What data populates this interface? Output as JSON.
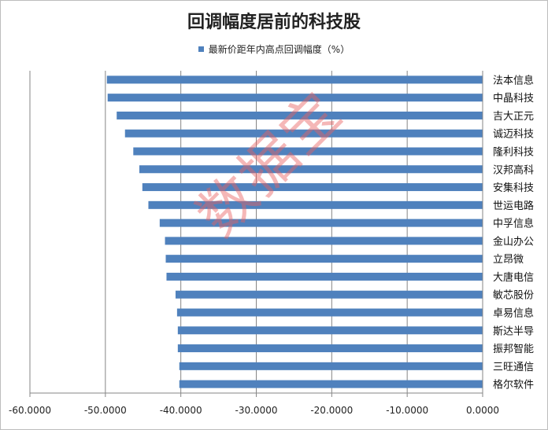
{
  "watermark": "数据宝",
  "colors": {
    "bar": "#4f81bd",
    "grid": "#868686",
    "axis": "#868686"
  },
  "chart_data": {
    "type": "bar",
    "orientation": "horizontal",
    "title": "回调幅度居前的科技股",
    "legend_position": "top",
    "series": [
      {
        "name": "最新价距年内高点回调幅度（%）",
        "values": [
          -49.8,
          -49.7,
          -48.5,
          -47.4,
          -46.3,
          -45.5,
          -45.1,
          -44.3,
          -42.8,
          -42.1,
          -42.0,
          -41.9,
          -40.7,
          -40.5,
          -40.4,
          -40.4,
          -40.2,
          -40.2
        ]
      }
    ],
    "categories": [
      "法本信息",
      "中晶科技",
      "吉大正元",
      "诚迈科技",
      "隆利科技",
      "汉邦高科",
      "安集科技",
      "世运电路",
      "中孚信息",
      "金山办公",
      "立昂微",
      "大唐电信",
      "敏芯股份",
      "卓易信息",
      "斯达半导",
      "振邦智能",
      "三旺通信",
      "格尔软件"
    ],
    "xlim": [
      -60,
      0
    ],
    "xticks": [
      -60,
      -50,
      -40,
      -30,
      -20,
      -10,
      0
    ],
    "xtick_labels": [
      "-60.0000",
      "-50.0000",
      "-40.0000",
      "-30.0000",
      "-20.0000",
      "-10.0000",
      "0.0000"
    ],
    "grid": true
  }
}
